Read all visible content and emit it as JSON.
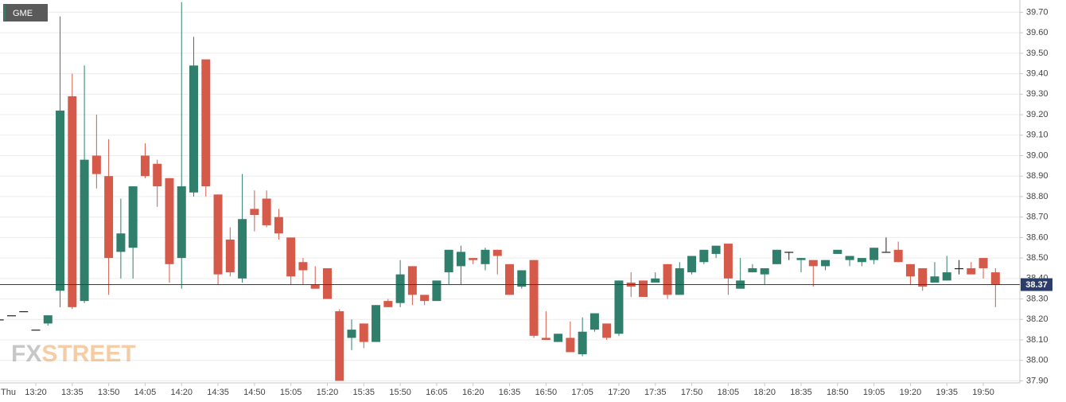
{
  "chart_data": {
    "type": "candlestick",
    "series": [
      {
        "name": "GME",
        "up_color": "#2f7f6c",
        "down_color": "#d65a4a",
        "doji_color": "#222222",
        "open": [
          38.2,
          38.22,
          38.24,
          38.15,
          38.18,
          38.34,
          39.29,
          38.29,
          39.0,
          38.9,
          38.53,
          38.55,
          39.0,
          38.96,
          38.89,
          38.5,
          38.82,
          39.47,
          38.81,
          38.59,
          38.4,
          38.74,
          38.79,
          38.7,
          38.6,
          38.48,
          38.37,
          38.45,
          38.24,
          38.11,
          38.18,
          38.09,
          38.29,
          38.28,
          38.46,
          38.32,
          38.29,
          38.43,
          38.46,
          38.5,
          38.47,
          38.54,
          38.47,
          38.36,
          38.49,
          38.11,
          38.09,
          38.11,
          38.03,
          38.15,
          38.18,
          38.13,
          38.38,
          38.39,
          38.38,
          38.47,
          38.32,
          38.43,
          38.48,
          38.52,
          38.57,
          38.35,
          38.43,
          38.42,
          38.47,
          38.53,
          38.49,
          38.49,
          38.46,
          38.52,
          38.49,
          38.48,
          38.49,
          38.53,
          38.54,
          38.47,
          38.45,
          38.38,
          38.39,
          38.45,
          38.45,
          38.5,
          38.43
        ],
        "high": [
          38.2,
          38.22,
          38.24,
          38.15,
          38.22,
          39.68,
          39.4,
          39.44,
          39.2,
          39.08,
          38.79,
          38.85,
          39.06,
          38.98,
          38.89,
          39.75,
          39.58,
          39.47,
          38.81,
          38.65,
          38.91,
          38.83,
          38.83,
          38.74,
          38.6,
          38.5,
          38.46,
          38.45,
          38.25,
          38.2,
          38.18,
          38.27,
          38.3,
          38.49,
          38.46,
          38.32,
          38.39,
          38.54,
          38.56,
          38.5,
          38.55,
          38.54,
          38.47,
          38.44,
          38.49,
          38.24,
          38.13,
          38.19,
          38.21,
          38.23,
          38.18,
          38.39,
          38.43,
          38.39,
          38.43,
          38.47,
          38.48,
          38.51,
          38.54,
          38.56,
          38.57,
          38.5,
          38.47,
          38.45,
          38.54,
          38.53,
          38.5,
          38.49,
          38.49,
          38.54,
          38.51,
          38.5,
          38.55,
          38.6,
          38.58,
          38.47,
          38.45,
          38.48,
          38.51,
          38.49,
          38.48,
          38.5,
          38.45
        ],
        "low": [
          38.2,
          38.22,
          38.24,
          38.15,
          38.17,
          38.26,
          38.25,
          38.28,
          38.84,
          38.32,
          38.4,
          38.4,
          38.89,
          38.75,
          38.38,
          38.35,
          38.8,
          38.8,
          38.37,
          38.41,
          38.38,
          38.63,
          38.65,
          38.59,
          38.37,
          38.37,
          38.35,
          38.3,
          37.9,
          38.05,
          38.06,
          38.09,
          38.26,
          38.26,
          38.27,
          38.27,
          38.29,
          38.37,
          38.37,
          38.47,
          38.44,
          38.42,
          38.32,
          38.35,
          38.11,
          38.1,
          38.09,
          38.04,
          38.02,
          38.14,
          38.1,
          38.12,
          38.31,
          38.31,
          38.38,
          38.3,
          38.32,
          38.42,
          38.47,
          38.5,
          38.32,
          38.35,
          38.43,
          38.37,
          38.47,
          38.49,
          38.43,
          38.36,
          38.44,
          38.52,
          38.46,
          38.46,
          38.47,
          38.53,
          38.48,
          38.37,
          38.34,
          38.38,
          38.39,
          38.42,
          38.42,
          38.4,
          38.26
        ],
        "close": [
          38.2,
          38.22,
          38.24,
          38.15,
          38.22,
          39.22,
          38.26,
          38.98,
          38.91,
          38.5,
          38.62,
          38.85,
          38.9,
          38.85,
          38.47,
          38.85,
          39.44,
          38.85,
          38.42,
          38.43,
          38.69,
          38.71,
          38.66,
          38.62,
          38.41,
          38.44,
          38.35,
          38.3,
          37.9,
          38.15,
          38.09,
          38.27,
          38.26,
          38.42,
          38.32,
          38.29,
          38.39,
          38.54,
          38.53,
          38.49,
          38.54,
          38.51,
          38.32,
          38.44,
          38.12,
          38.1,
          38.13,
          38.04,
          38.14,
          38.23,
          38.11,
          38.39,
          38.36,
          38.31,
          38.4,
          38.32,
          38.45,
          38.51,
          38.54,
          38.56,
          38.4,
          38.39,
          38.45,
          38.45,
          38.54,
          38.53,
          38.5,
          38.46,
          38.49,
          38.54,
          38.51,
          38.5,
          38.55,
          38.53,
          38.48,
          38.41,
          38.36,
          38.41,
          38.43,
          38.45,
          38.42,
          38.45,
          38.37
        ]
      }
    ],
    "categories": [
      "Thu",
      null,
      null,
      "13:20",
      null,
      null,
      "13:35",
      null,
      null,
      "13:50",
      null,
      null,
      "14:05",
      null,
      null,
      "14:20",
      null,
      null,
      "14:35",
      null,
      null,
      "14:50",
      null,
      null,
      "15:05",
      null,
      null,
      "15:20",
      null,
      null,
      "15:35",
      null,
      null,
      "15:50",
      null,
      null,
      "16:05",
      null,
      null,
      "16:20",
      null,
      null,
      "16:35",
      null,
      null,
      "16:50",
      null,
      null,
      "17:05",
      null,
      null,
      "17:20",
      null,
      null,
      "17:35",
      null,
      null,
      "17:50",
      null,
      null,
      "18:05",
      null,
      null,
      "18:20",
      null,
      null,
      "18:35",
      null,
      null,
      "18:50",
      null,
      null,
      "19:05",
      null,
      null,
      "19:20",
      null,
      null,
      "19:35",
      null,
      null,
      "19:50",
      null
    ],
    "ylim": [
      37.89,
      39.76
    ],
    "yticks": [
      {
        "value": 37.9,
        "label": "37.90"
      },
      {
        "value": 38.0,
        "label": "38.00"
      },
      {
        "value": 38.1,
        "label": "38.10"
      },
      {
        "value": 38.2,
        "label": "38.20"
      },
      {
        "value": 38.3,
        "label": "38.30"
      },
      {
        "value": 38.4,
        "label": "38.40"
      },
      {
        "value": 38.5,
        "label": "38.50"
      },
      {
        "value": 38.6,
        "label": "38.60"
      },
      {
        "value": 38.7,
        "label": "38.70"
      },
      {
        "value": 38.8,
        "label": "38.80"
      },
      {
        "value": 38.9,
        "label": "38.90"
      },
      {
        "value": 39.0,
        "label": "39.00"
      },
      {
        "value": 39.1,
        "label": "39.10"
      },
      {
        "value": 39.2,
        "label": "39.20"
      },
      {
        "value": 39.3,
        "label": "39.30"
      },
      {
        "value": 39.4,
        "label": "39.40"
      },
      {
        "value": 39.5,
        "label": "39.50"
      },
      {
        "value": 39.6,
        "label": "39.60"
      },
      {
        "value": 39.7,
        "label": "39.70"
      }
    ],
    "grid": true,
    "last_price": 38.37,
    "last_price_color": "#2b3e6a",
    "watermark": {
      "prefix": "FX",
      "suffix": "STREET"
    }
  }
}
